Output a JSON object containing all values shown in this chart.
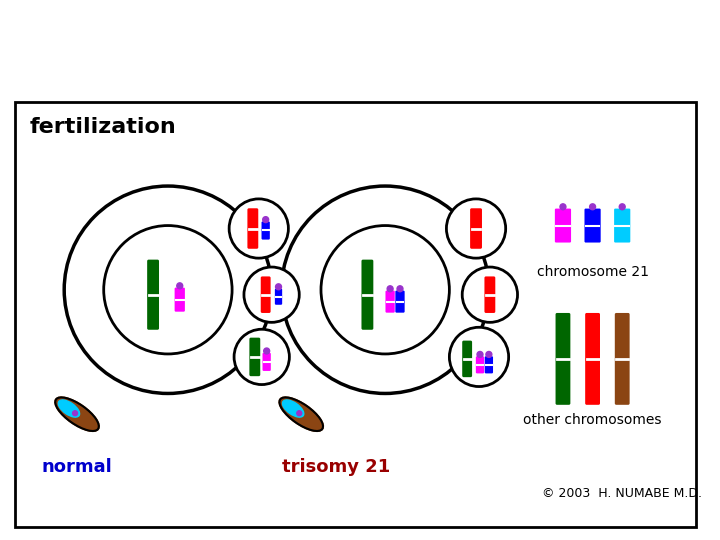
{
  "bg_color": "#ffffff",
  "border_color": "#000000",
  "title": "fertilization",
  "label_normal": "normal",
  "label_trisomy": "trisomy 21",
  "label_chr21": "chromosome 21",
  "label_otherchr": "other chromosomes",
  "label_copyright": "© 2003  H. NUMABE M.D.",
  "label_normal_color": "#0000cc",
  "label_trisomy_color": "#990000",
  "chr21_colors": [
    "#ff00ff",
    "#0000ff",
    "#00ccff"
  ],
  "other_chr_colors": [
    "#006600",
    "#ff0000",
    "#8b4513"
  ],
  "green_chr": "#006600",
  "red_chr": "#ff0000",
  "magenta_chr": "#ff00ff",
  "blue_chr": "#0000ff",
  "cyan_chr": "#00ccff",
  "brown_chr": "#8b4513",
  "purple_dot": "#9933cc"
}
